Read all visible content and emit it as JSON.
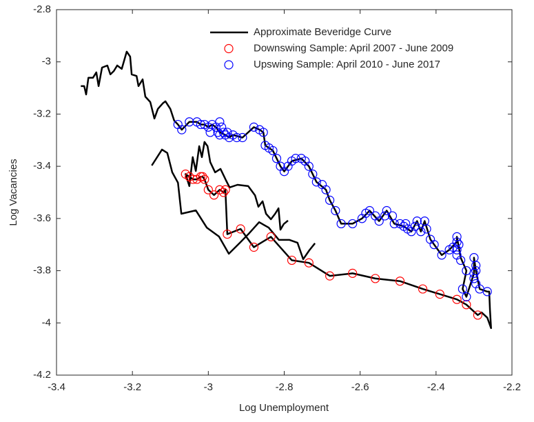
{
  "chart_data": {
    "type": "line",
    "xlabel": "Log Unemployment",
    "ylabel": "Log Vacancies",
    "xlim": [
      -3.4,
      -2.2
    ],
    "ylim": [
      -4.2,
      -2.8
    ],
    "xticks": [
      -3.4,
      -3.2,
      -3,
      -2.8,
      -2.6,
      -2.4,
      -2.2
    ],
    "yticks": [
      -4.2,
      -4,
      -3.8,
      -3.6,
      -3.4,
      -3.2,
      -3,
      -2.8
    ],
    "grid": false,
    "legend": "upper right",
    "series": [
      {
        "name": "Approximate Beveridge Curve",
        "type": "line",
        "color": "#000000",
        "x": [
          -3.336,
          -3.327,
          -3.322,
          -3.316,
          -3.304,
          -3.295,
          -3.289,
          -3.28,
          -3.266,
          -3.258,
          -3.249,
          -3.24,
          -3.228,
          -3.215,
          -3.206,
          -3.202,
          -3.189,
          -3.184,
          -3.173,
          -3.166,
          -3.153,
          -3.142,
          -3.133,
          -3.12,
          -3.113,
          -3.1,
          -3.09,
          -3.08,
          -3.07,
          -3.05,
          -3.03,
          -3.02,
          -3.01,
          -3.0,
          -2.99,
          -2.98,
          -2.97,
          -2.955,
          -2.945,
          -2.935,
          -2.91,
          -2.88,
          -2.865,
          -2.855,
          -2.85,
          -2.83,
          -2.81,
          -2.8,
          -2.78,
          -2.755,
          -2.735,
          -2.715,
          -2.69,
          -2.68,
          -2.665,
          -2.65,
          -2.62,
          -2.595,
          -2.575,
          -2.55,
          -2.53,
          -2.51,
          -2.485,
          -2.465,
          -2.45,
          -2.44,
          -2.43,
          -2.415,
          -2.385,
          -2.365,
          -2.345,
          -2.345,
          -2.335,
          -2.32,
          -2.33,
          -2.32,
          -2.3,
          -2.3,
          -2.295,
          -2.285,
          -2.265,
          -2.26,
          -2.258,
          -2.255,
          -2.265,
          -2.28,
          -2.29,
          -2.32,
          -2.345,
          -2.39,
          -2.435,
          -2.495,
          -2.56,
          -2.62,
          -2.68,
          -2.735,
          -2.78,
          -2.835,
          -2.88,
          -2.915,
          -2.95,
          -2.955,
          -2.96,
          -2.97,
          -2.985,
          -3.0,
          -3.01,
          -3.015,
          -3.02,
          -3.03,
          -3.04,
          -3.05,
          -3.06,
          -3.05,
          -3.041,
          -3.033,
          -3.024,
          -3.017,
          -3.01,
          -3.002,
          -2.995,
          -2.982,
          -2.968,
          -2.953,
          -2.944,
          -2.923,
          -2.895,
          -2.877,
          -2.868,
          -2.857,
          -2.848,
          -2.835,
          -2.824,
          -2.815,
          -2.81,
          -2.801,
          -2.79,
          null,
          -3.149,
          -3.122,
          -3.108,
          -3.095,
          -3.08,
          -3.071,
          -3.033,
          -3.004,
          -2.972,
          -2.946,
          -2.917,
          -2.892,
          -2.866,
          -2.841,
          -2.814,
          -2.786,
          -2.765,
          -2.75,
          -2.734,
          -2.719
        ],
        "values": [
          -3.093,
          -3.093,
          -3.125,
          -3.061,
          -3.061,
          -3.04,
          -3.093,
          -3.022,
          -3.014,
          -3.048,
          -3.035,
          -3.014,
          -3.027,
          -2.961,
          -2.98,
          -3.048,
          -3.054,
          -3.093,
          -3.067,
          -3.133,
          -3.154,
          -3.217,
          -3.18,
          -3.159,
          -3.151,
          -3.18,
          -3.225,
          -3.24,
          -3.26,
          -3.23,
          -3.23,
          -3.24,
          -3.24,
          -3.25,
          -3.24,
          -3.25,
          -3.27,
          -3.28,
          -3.29,
          -3.28,
          -3.29,
          -3.25,
          -3.26,
          -3.27,
          -3.32,
          -3.34,
          -3.4,
          -3.42,
          -3.38,
          -3.37,
          -3.4,
          -3.46,
          -3.49,
          -3.53,
          -3.57,
          -3.62,
          -3.62,
          -3.6,
          -3.57,
          -3.61,
          -3.57,
          -3.62,
          -3.63,
          -3.65,
          -3.61,
          -3.65,
          -3.61,
          -3.68,
          -3.74,
          -3.72,
          -3.69,
          -3.67,
          -3.75,
          -3.8,
          -3.87,
          -3.9,
          -3.81,
          -3.75,
          -3.8,
          -3.87,
          -3.88,
          -3.88,
          -3.95,
          -4.02,
          -3.98,
          -3.96,
          -3.97,
          -3.93,
          -3.91,
          -3.89,
          -3.87,
          -3.84,
          -3.83,
          -3.81,
          -3.82,
          -3.77,
          -3.76,
          -3.67,
          -3.71,
          -3.64,
          -3.66,
          -3.49,
          -3.5,
          -3.49,
          -3.51,
          -3.49,
          -3.45,
          -3.44,
          -3.44,
          -3.45,
          -3.45,
          -3.44,
          -3.43,
          -3.476,
          -3.365,
          -3.418,
          -3.323,
          -3.365,
          -3.307,
          -3.323,
          -3.384,
          -3.423,
          -3.41,
          -3.455,
          -3.481,
          -3.471,
          -3.476,
          -3.511,
          -3.555,
          -3.534,
          -3.582,
          -3.603,
          -3.582,
          -3.561,
          -3.643,
          -3.621,
          -3.608,
          null,
          -3.397,
          -3.336,
          -3.349,
          -3.423,
          -3.463,
          -3.582,
          -3.569,
          -3.635,
          -3.669,
          -3.735,
          -3.693,
          -3.656,
          -3.614,
          -3.635,
          -3.682,
          -3.682,
          -3.693,
          -3.756,
          -3.722,
          -3.695
        ]
      },
      {
        "name": "Downswing Sample: April 2007 - June 2009",
        "type": "scatter",
        "color": "#ff0000",
        "x": [
          -3.06,
          -3.05,
          -3.04,
          -3.03,
          -3.02,
          -3.015,
          -3.01,
          -3.0,
          -2.985,
          -2.97,
          -2.96,
          -2.955,
          -2.95,
          -2.915,
          -2.88,
          -2.835,
          -2.78,
          -2.735,
          -2.68,
          -2.62,
          -2.56,
          -2.495,
          -2.435,
          -2.39,
          -2.345,
          -2.32,
          -2.29
        ],
        "values": [
          -3.43,
          -3.44,
          -3.45,
          -3.45,
          -3.44,
          -3.44,
          -3.45,
          -3.49,
          -3.51,
          -3.49,
          -3.5,
          -3.49,
          -3.66,
          -3.64,
          -3.71,
          -3.67,
          -3.76,
          -3.77,
          -3.82,
          -3.81,
          -3.83,
          -3.84,
          -3.87,
          -3.89,
          -3.91,
          -3.93,
          -3.97
        ]
      },
      {
        "name": "Upswing Sample: April 2010 - June 2017",
        "type": "scatter",
        "color": "#0000ff",
        "x": [
          -3.08,
          -3.07,
          -3.05,
          -3.03,
          -3.02,
          -3.01,
          -3.0,
          -2.995,
          -2.99,
          -2.98,
          -2.975,
          -2.97,
          -2.97,
          -2.965,
          -2.96,
          -2.955,
          -2.95,
          -2.945,
          -2.935,
          -2.925,
          -2.91,
          -2.88,
          -2.865,
          -2.855,
          -2.85,
          -2.84,
          -2.83,
          -2.82,
          -2.81,
          -2.8,
          -2.79,
          -2.78,
          -2.77,
          -2.755,
          -2.745,
          -2.735,
          -2.725,
          -2.715,
          -2.7,
          -2.69,
          -2.68,
          -2.665,
          -2.65,
          -2.62,
          -2.595,
          -2.585,
          -2.575,
          -2.56,
          -2.55,
          -2.535,
          -2.53,
          -2.515,
          -2.51,
          -2.495,
          -2.485,
          -2.48,
          -2.475,
          -2.465,
          -2.455,
          -2.45,
          -2.44,
          -2.43,
          -2.425,
          -2.415,
          -2.405,
          -2.385,
          -2.365,
          -2.355,
          -2.345,
          -2.345,
          -2.34,
          -2.345,
          -2.345,
          -2.335,
          -2.32,
          -2.33,
          -2.32,
          -2.3,
          -2.3,
          -2.295,
          -2.295,
          -2.3,
          -2.295,
          -2.285,
          -2.265
        ],
        "values": [
          -3.24,
          -3.26,
          -3.23,
          -3.23,
          -3.24,
          -3.24,
          -3.25,
          -3.27,
          -3.24,
          -3.25,
          -3.27,
          -3.28,
          -3.23,
          -3.25,
          -3.27,
          -3.28,
          -3.27,
          -3.29,
          -3.28,
          -3.29,
          -3.29,
          -3.25,
          -3.26,
          -3.27,
          -3.32,
          -3.33,
          -3.34,
          -3.37,
          -3.4,
          -3.42,
          -3.4,
          -3.38,
          -3.37,
          -3.37,
          -3.38,
          -3.4,
          -3.43,
          -3.46,
          -3.47,
          -3.49,
          -3.53,
          -3.57,
          -3.62,
          -3.62,
          -3.6,
          -3.58,
          -3.57,
          -3.59,
          -3.61,
          -3.59,
          -3.57,
          -3.59,
          -3.62,
          -3.62,
          -3.63,
          -3.62,
          -3.64,
          -3.65,
          -3.63,
          -3.61,
          -3.65,
          -3.61,
          -3.64,
          -3.68,
          -3.7,
          -3.74,
          -3.72,
          -3.71,
          -3.69,
          -3.67,
          -3.7,
          -3.72,
          -3.74,
          -3.76,
          -3.8,
          -3.87,
          -3.9,
          -3.81,
          -3.75,
          -3.78,
          -3.8,
          -3.83,
          -3.85,
          -3.87,
          -3.88
        ]
      }
    ]
  }
}
